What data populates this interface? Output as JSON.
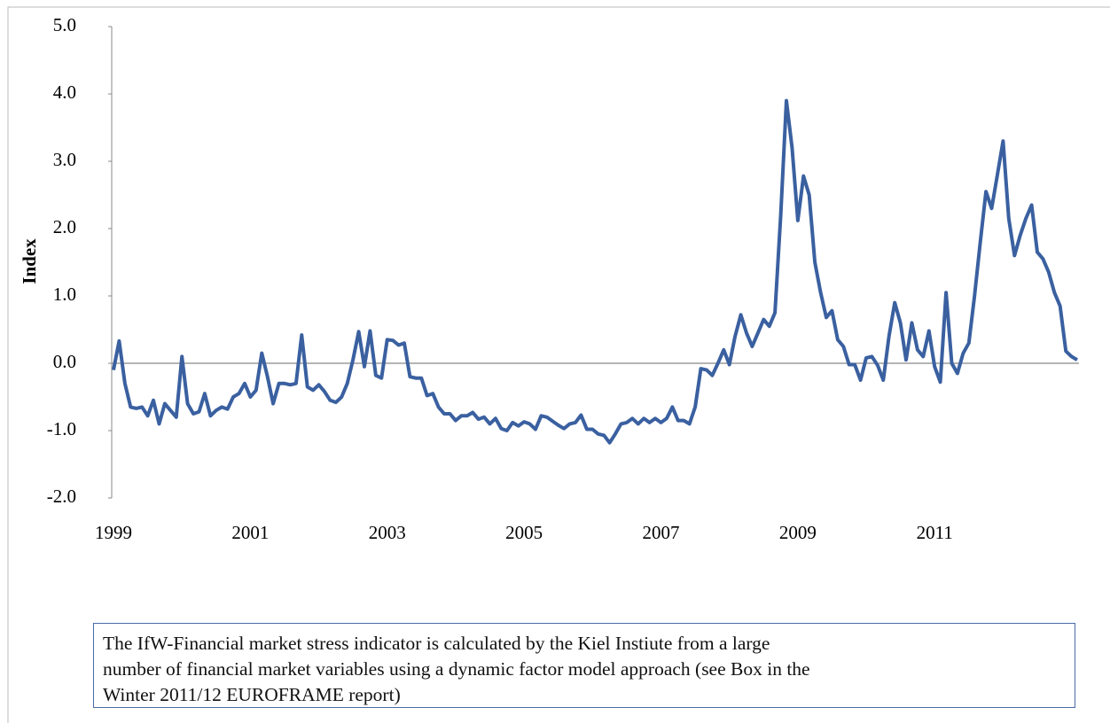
{
  "chart_data": {
    "type": "line",
    "y_label": "Index",
    "x": [
      1999,
      1999.083,
      1999.167,
      1999.25,
      1999.333,
      1999.417,
      1999.5,
      1999.583,
      1999.667,
      1999.75,
      1999.833,
      1999.917,
      2000,
      2000.083,
      2000.167,
      2000.25,
      2000.333,
      2000.417,
      2000.5,
      2000.583,
      2000.667,
      2000.75,
      2000.833,
      2000.917,
      2001,
      2001.083,
      2001.167,
      2001.25,
      2001.333,
      2001.417,
      2001.5,
      2001.583,
      2001.667,
      2001.75,
      2001.833,
      2001.917,
      2002,
      2002.083,
      2002.167,
      2002.25,
      2002.333,
      2002.417,
      2002.5,
      2002.583,
      2002.667,
      2002.75,
      2002.833,
      2002.917,
      2003,
      2003.083,
      2003.167,
      2003.25,
      2003.333,
      2003.417,
      2003.5,
      2003.583,
      2003.667,
      2003.75,
      2003.833,
      2003.917,
      2004,
      2004.083,
      2004.167,
      2004.25,
      2004.333,
      2004.417,
      2004.5,
      2004.583,
      2004.667,
      2004.75,
      2004.833,
      2004.917,
      2005,
      2005.083,
      2005.167,
      2005.25,
      2005.333,
      2005.417,
      2005.5,
      2005.583,
      2005.667,
      2005.75,
      2005.833,
      2005.917,
      2006,
      2006.083,
      2006.167,
      2006.25,
      2006.333,
      2006.417,
      2006.5,
      2006.583,
      2006.667,
      2006.75,
      2006.833,
      2006.917,
      2007,
      2007.083,
      2007.167,
      2007.25,
      2007.333,
      2007.417,
      2007.5,
      2007.583,
      2007.667,
      2007.75,
      2007.833,
      2007.917,
      2008,
      2008.083,
      2008.167,
      2008.25,
      2008.333,
      2008.417,
      2008.5,
      2008.583,
      2008.667,
      2008.75,
      2008.833,
      2008.917,
      2009,
      2009.083,
      2009.167,
      2009.25,
      2009.333,
      2009.417,
      2009.5,
      2009.583,
      2009.667,
      2009.75,
      2009.833,
      2009.917,
      2010,
      2010.083,
      2010.167,
      2010.25,
      2010.333,
      2010.417,
      2010.5,
      2010.583,
      2010.667,
      2010.75,
      2010.833,
      2010.917,
      2011,
      2011.083,
      2011.167,
      2011.25,
      2011.333,
      2011.417,
      2011.5,
      2011.583,
      2011.667,
      2011.75,
      2011.833,
      2011.917,
      2012,
      2012.083,
      2012.167,
      2012.25,
      2012.333,
      2012.417,
      2012.5,
      2012.583,
      2012.667,
      2012.75,
      2012.833,
      2012.917,
      2013,
      2013.083
    ],
    "series": [
      {
        "color": "#3a60a0",
        "values": [
          -0.1,
          0.33,
          -0.3,
          -0.65,
          -0.67,
          -0.65,
          -0.78,
          -0.55,
          -0.9,
          -0.6,
          -0.7,
          -0.8,
          0.1,
          -0.6,
          -0.75,
          -0.72,
          -0.45,
          -0.78,
          -0.7,
          -0.65,
          -0.68,
          -0.5,
          -0.45,
          -0.3,
          -0.5,
          -0.4,
          0.15,
          -0.2,
          -0.6,
          -0.3,
          -0.3,
          -0.32,
          -0.3,
          0.42,
          -0.35,
          -0.4,
          -0.32,
          -0.42,
          -0.55,
          -0.58,
          -0.5,
          -0.3,
          0.05,
          0.47,
          -0.05,
          0.48,
          -0.18,
          -0.22,
          0.35,
          0.34,
          0.27,
          0.3,
          -0.2,
          -0.22,
          -0.22,
          -0.48,
          -0.45,
          -0.65,
          -0.75,
          -0.75,
          -0.85,
          -0.78,
          -0.78,
          -0.73,
          -0.83,
          -0.8,
          -0.9,
          -0.82,
          -0.97,
          -1.0,
          -0.88,
          -0.93,
          -0.87,
          -0.9,
          -0.98,
          -0.78,
          -0.8,
          -0.86,
          -0.92,
          -0.97,
          -0.9,
          -0.88,
          -0.77,
          -0.98,
          -0.98,
          -1.05,
          -1.07,
          -1.18,
          -1.05,
          -0.9,
          -0.88,
          -0.82,
          -0.9,
          -0.82,
          -0.88,
          -0.82,
          -0.88,
          -0.82,
          -0.65,
          -0.85,
          -0.85,
          -0.9,
          -0.65,
          -0.08,
          -0.1,
          -0.18,
          0.0,
          0.2,
          -0.02,
          0.4,
          0.72,
          0.45,
          0.25,
          0.45,
          0.65,
          0.55,
          0.75,
          2.2,
          3.9,
          3.2,
          2.12,
          2.78,
          2.5,
          1.5,
          1.05,
          0.68,
          0.78,
          0.35,
          0.25,
          -0.02,
          -0.02,
          -0.25,
          0.08,
          0.1,
          -0.03,
          -0.25,
          0.4,
          0.9,
          0.6,
          0.05,
          0.6,
          0.2,
          0.1,
          0.48,
          -0.05,
          -0.28,
          1.05,
          0.0,
          -0.15,
          0.15,
          0.3,
          1.0,
          1.8,
          2.55,
          2.3,
          2.8,
          3.3,
          2.15,
          1.6,
          1.9,
          2.15,
          2.35,
          1.65,
          1.55,
          1.35,
          1.05,
          0.85,
          0.18,
          0.1,
          0.05
        ]
      }
    ],
    "xlim": [
      1999,
      2013.083
    ],
    "xticks": [
      1999,
      2001,
      2003,
      2005,
      2007,
      2009,
      2011
    ],
    "ylim": [
      -2,
      5
    ],
    "yticks": [
      {
        "value": -2,
        "label": "-2.0"
      },
      {
        "value": -1,
        "label": "-1.0"
      },
      {
        "value": 0,
        "label": "0.0"
      },
      {
        "value": 1,
        "label": "1.0"
      },
      {
        "value": 2,
        "label": "2.0"
      },
      {
        "value": 3,
        "label": "3.0"
      },
      {
        "value": 4,
        "label": "4.0"
      },
      {
        "value": 5,
        "label": "5.0"
      }
    ],
    "note": [
      "The IfW-Financial market stress indicator is calculated by the Kiel Instiute from a large",
      "number of financial market variables using  a dynamic factor model approach (see Box in the",
      "Winter 2011/12 EUROFRAME report)"
    ]
  }
}
